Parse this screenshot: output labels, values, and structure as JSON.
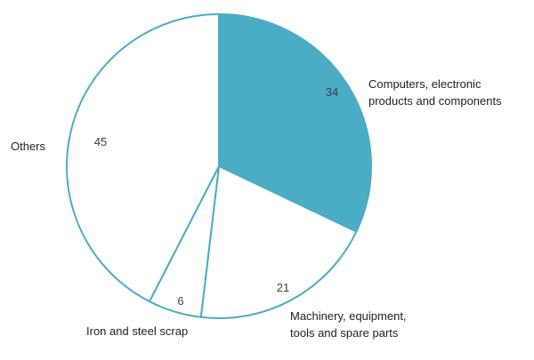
{
  "chart_data": {
    "type": "pie",
    "title": "",
    "start": "top",
    "direction": "clockwise",
    "slices": [
      {
        "name": "Computers, electronic products and components",
        "label_lines": [
          "Computers, electronic",
          "products and components"
        ],
        "value": 34,
        "value_text": "34",
        "fill": "#4BACC6"
      },
      {
        "name": "Machinery, equipment, tools and spare parts",
        "label_lines": [
          "Machinery, equipment,",
          "tools and spare parts"
        ],
        "value": 21,
        "value_text": "21",
        "fill": "#FFFFFF"
      },
      {
        "name": "Iron and steel scrap",
        "label_lines": [
          "Iron and steel scrap"
        ],
        "value": 6,
        "value_text": "6",
        "fill": "#FFFFFF"
      },
      {
        "name": "Others",
        "label_lines": [
          "Others"
        ],
        "value": 45,
        "value_text": "45",
        "fill": "#FFFFFF"
      }
    ],
    "stroke": "#4BACC6"
  }
}
